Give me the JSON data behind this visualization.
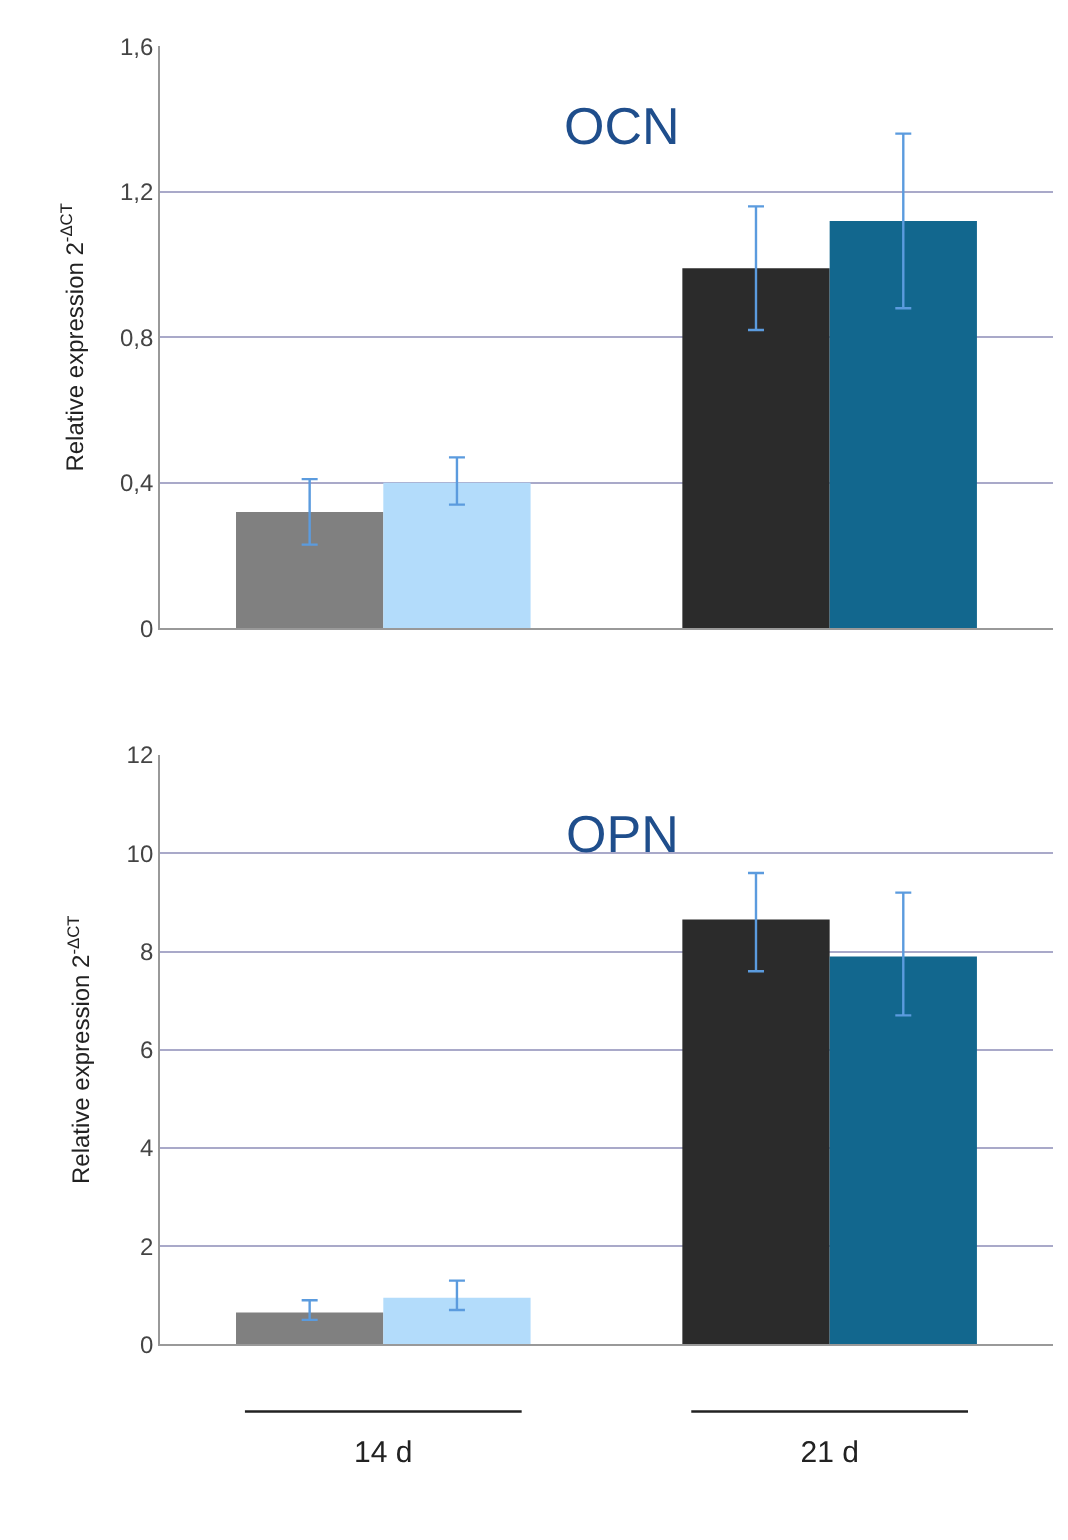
{
  "chart_data": [
    {
      "type": "bar",
      "title": "OCN",
      "ylabel": "Relative expression 2$^{-ΔCT}$",
      "categories": [
        null,
        null
      ],
      "grid": "y",
      "series": [
        {
          "colors": [
            "#808080",
            "#2b2b2b"
          ],
          "values": [
            0.32,
            0.99
          ],
          "errors": [
            [
              0.23,
              0.41
            ],
            [
              0.82,
              1.16
            ]
          ]
        },
        {
          "colors": [
            "#b3dcfb",
            "#12678e"
          ],
          "values": [
            0.4,
            1.12
          ],
          "errors": [
            [
              0.34,
              0.47
            ],
            [
              0.88,
              1.36
            ]
          ]
        }
      ],
      "ylim": [
        0,
        1.6
      ],
      "yticks": [
        0,
        {
          "value": 0.4,
          "label": "0,4"
        },
        {
          "value": 0.8,
          "label": "0,8"
        },
        {
          "value": 1.2,
          "label": "1,2"
        },
        {
          "value": 1.6,
          "label": "1,6"
        }
      ]
    },
    {
      "type": "bar",
      "title": "OPN",
      "ylabel": "Relative expression 2$^{-ΔCT}$",
      "categories": [
        "14 d",
        "21 d"
      ],
      "grid": "y",
      "series": [
        {
          "colors": [
            "#808080",
            "#2b2b2b"
          ],
          "values": [
            0.65,
            8.65
          ],
          "errors": [
            [
              0.5,
              0.9
            ],
            [
              7.6,
              9.6
            ]
          ]
        },
        {
          "colors": [
            "#b3dcfb",
            "#12678e"
          ],
          "values": [
            0.95,
            7.9
          ],
          "errors": [
            [
              0.7,
              1.3
            ],
            [
              6.7,
              9.2
            ]
          ]
        }
      ],
      "ylim": [
        0,
        12
      ],
      "yticks": [
        0,
        2,
        4,
        6,
        8,
        10,
        12
      ]
    }
  ]
}
